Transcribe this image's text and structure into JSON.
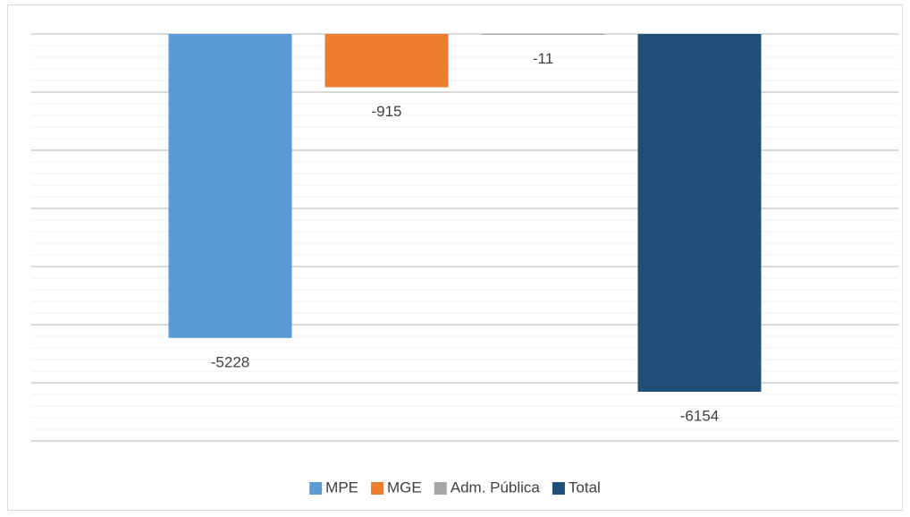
{
  "chart_data": {
    "type": "bar",
    "series": [
      {
        "name": "MPE",
        "color": "#5b9bd5",
        "values": [
          -5228
        ]
      },
      {
        "name": "MGE",
        "color": "#ed7d31",
        "values": [
          -915
        ]
      },
      {
        "name": "Adm. Pública",
        "color": "#a5a5a5",
        "values": [
          -11
        ]
      },
      {
        "name": "Total",
        "color": "#1f4e79",
        "values": [
          -6154
        ]
      }
    ],
    "ylim": [
      -7000,
      0
    ],
    "yticks": [
      -7000,
      -6000,
      -5000,
      -4000,
      -3000,
      -2000,
      -1000,
      0
    ],
    "grid": true,
    "legend": "bottom"
  }
}
